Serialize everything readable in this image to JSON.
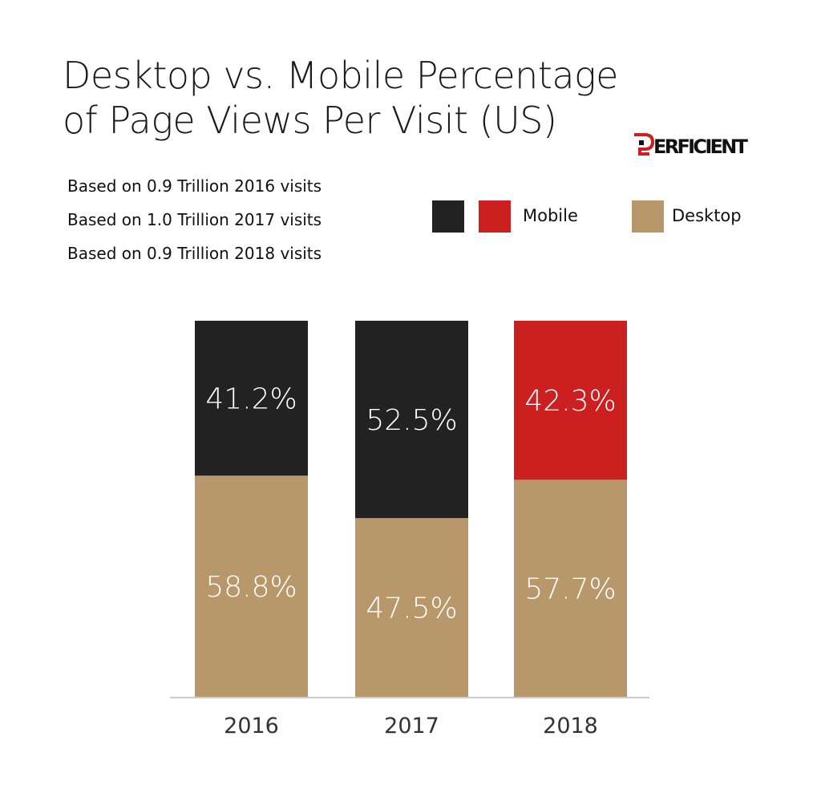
{
  "chart_data": {
    "type": "bar",
    "stacked": true,
    "title_lines": [
      "Desktop vs. Mobile Percentage",
      "of Page Views Per Visit (US)"
    ],
    "notes": [
      "Based on 0.9 Trillion 2016 visits",
      "Based on 1.0 Trillion 2017 visits",
      "Based on 0.9 Trillion 2018 visits"
    ],
    "categories": [
      "2016",
      "2017",
      "2018"
    ],
    "series": [
      {
        "name": "Desktop",
        "values": [
          58.8,
          47.5,
          57.7
        ],
        "labels": [
          "58.8%",
          "47.5%",
          "57.7%"
        ],
        "color": "#b8986a"
      },
      {
        "name": "Mobile",
        "values": [
          41.2,
          52.5,
          42.3
        ],
        "labels": [
          "41.2%",
          "52.5%",
          "42.3%"
        ],
        "colors": [
          "#222222",
          "#222222",
          "#cc2020"
        ]
      }
    ],
    "legend": {
      "placement": "top-right",
      "mobile_colors": [
        "#222222",
        "#cc2020"
      ],
      "mobile_label": "Mobile",
      "desktop_color": "#b8986a",
      "desktop_label": "Desktop"
    },
    "ylim": [
      0,
      100
    ],
    "grid": false
  },
  "brand": {
    "logo_text": "PERFICIENT",
    "color": "#cc2020"
  }
}
